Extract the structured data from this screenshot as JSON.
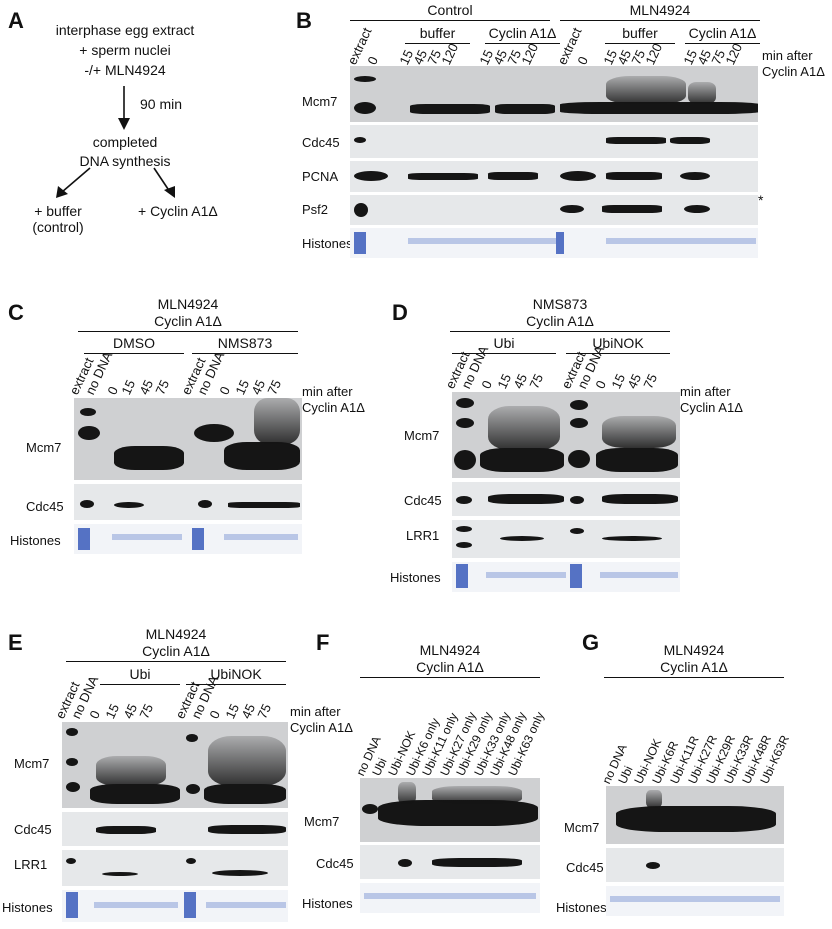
{
  "panels": {
    "A": {
      "letter": "A",
      "lines": [
        "interphase egg extract",
        "+ sperm nuclei",
        "-/+ MLN4924"
      ],
      "arrow_label": "90 min",
      "result_lines": [
        "completed",
        "DNA synthesis"
      ],
      "left_branch": [
        "+ buffer",
        "(control)"
      ],
      "right_branch": "+ Cyclin A1Δ"
    },
    "B": {
      "letter": "B",
      "groups": [
        "Control",
        "MLN4924"
      ],
      "subgroups": [
        "buffer",
        "Cyclin A1Δ",
        "buffer",
        "Cyclin A1Δ"
      ],
      "lanes": [
        "extract",
        "0",
        "15",
        "45",
        "75",
        "120",
        "15",
        "45",
        "75",
        "120",
        "extract",
        "0",
        "15",
        "45",
        "75",
        "120",
        "15",
        "45",
        "75",
        "120"
      ],
      "side_note": [
        "min after",
        "Cyclin A1Δ"
      ],
      "rows": [
        "Mcm7",
        "Cdc45",
        "PCNA",
        "Psf2",
        "Histones"
      ],
      "star": "*"
    },
    "C": {
      "letter": "C",
      "title": [
        "MLN4924",
        "Cyclin A1Δ"
      ],
      "subgroups": [
        "DMSO",
        "NMS873"
      ],
      "lanes": [
        "extract",
        "no DNA",
        "0",
        "15",
        "45",
        "75",
        "extract",
        "no DNA",
        "0",
        "15",
        "45",
        "75"
      ],
      "side_note": [
        "min after",
        "Cyclin A1Δ"
      ],
      "rows": [
        "Mcm7",
        "Cdc45",
        "Histones"
      ]
    },
    "D": {
      "letter": "D",
      "title": [
        "NMS873",
        "Cyclin A1Δ"
      ],
      "subgroups": [
        "Ubi",
        "UbiNOK"
      ],
      "lanes": [
        "extract",
        "no DNA",
        "0",
        "15",
        "45",
        "75",
        "extract",
        "no DNA",
        "0",
        "15",
        "45",
        "75"
      ],
      "side_note": [
        "min after",
        "Cyclin A1Δ"
      ],
      "rows": [
        "Mcm7",
        "Cdc45",
        "LRR1",
        "Histones"
      ]
    },
    "E": {
      "letter": "E",
      "title": [
        "MLN4924",
        "Cyclin A1Δ"
      ],
      "subgroups": [
        "Ubi",
        "UbiNOK"
      ],
      "lanes": [
        "extract",
        "no DNA",
        "0",
        "15",
        "45",
        "75",
        "extract",
        "no DNA",
        "0",
        "15",
        "45",
        "75"
      ],
      "side_note": [
        "min after",
        "Cyclin A1Δ"
      ],
      "rows": [
        "Mcm7",
        "Cdc45",
        "LRR1",
        "Histones"
      ]
    },
    "F": {
      "letter": "F",
      "title": [
        "MLN4924",
        "Cyclin A1Δ"
      ],
      "lanes": [
        "no DNA",
        "Ubi",
        "Ubi-NOK",
        "Ubi-K6 only",
        "Ubi-K11 only",
        "Ubi-K27 only",
        "Ubi-K29 only",
        "Ubi-K33 only",
        "Ubi-K48 only",
        "Ubi-K63 only"
      ],
      "rows": [
        "Mcm7",
        "Cdc45",
        "Histones"
      ]
    },
    "G": {
      "letter": "G",
      "title": [
        "MLN4924",
        "Cyclin A1Δ"
      ],
      "lanes": [
        "no DNA",
        "Ubi",
        "Ubi-NOK",
        "Ubi-K6R",
        "Ubi-K11R",
        "Ubi-K27R",
        "Ubi-K29R",
        "Ubi-K33R",
        "Ubi-K48R",
        "Ubi-K63R"
      ],
      "rows": [
        "Mcm7",
        "Cdc45",
        "Histones"
      ]
    }
  }
}
